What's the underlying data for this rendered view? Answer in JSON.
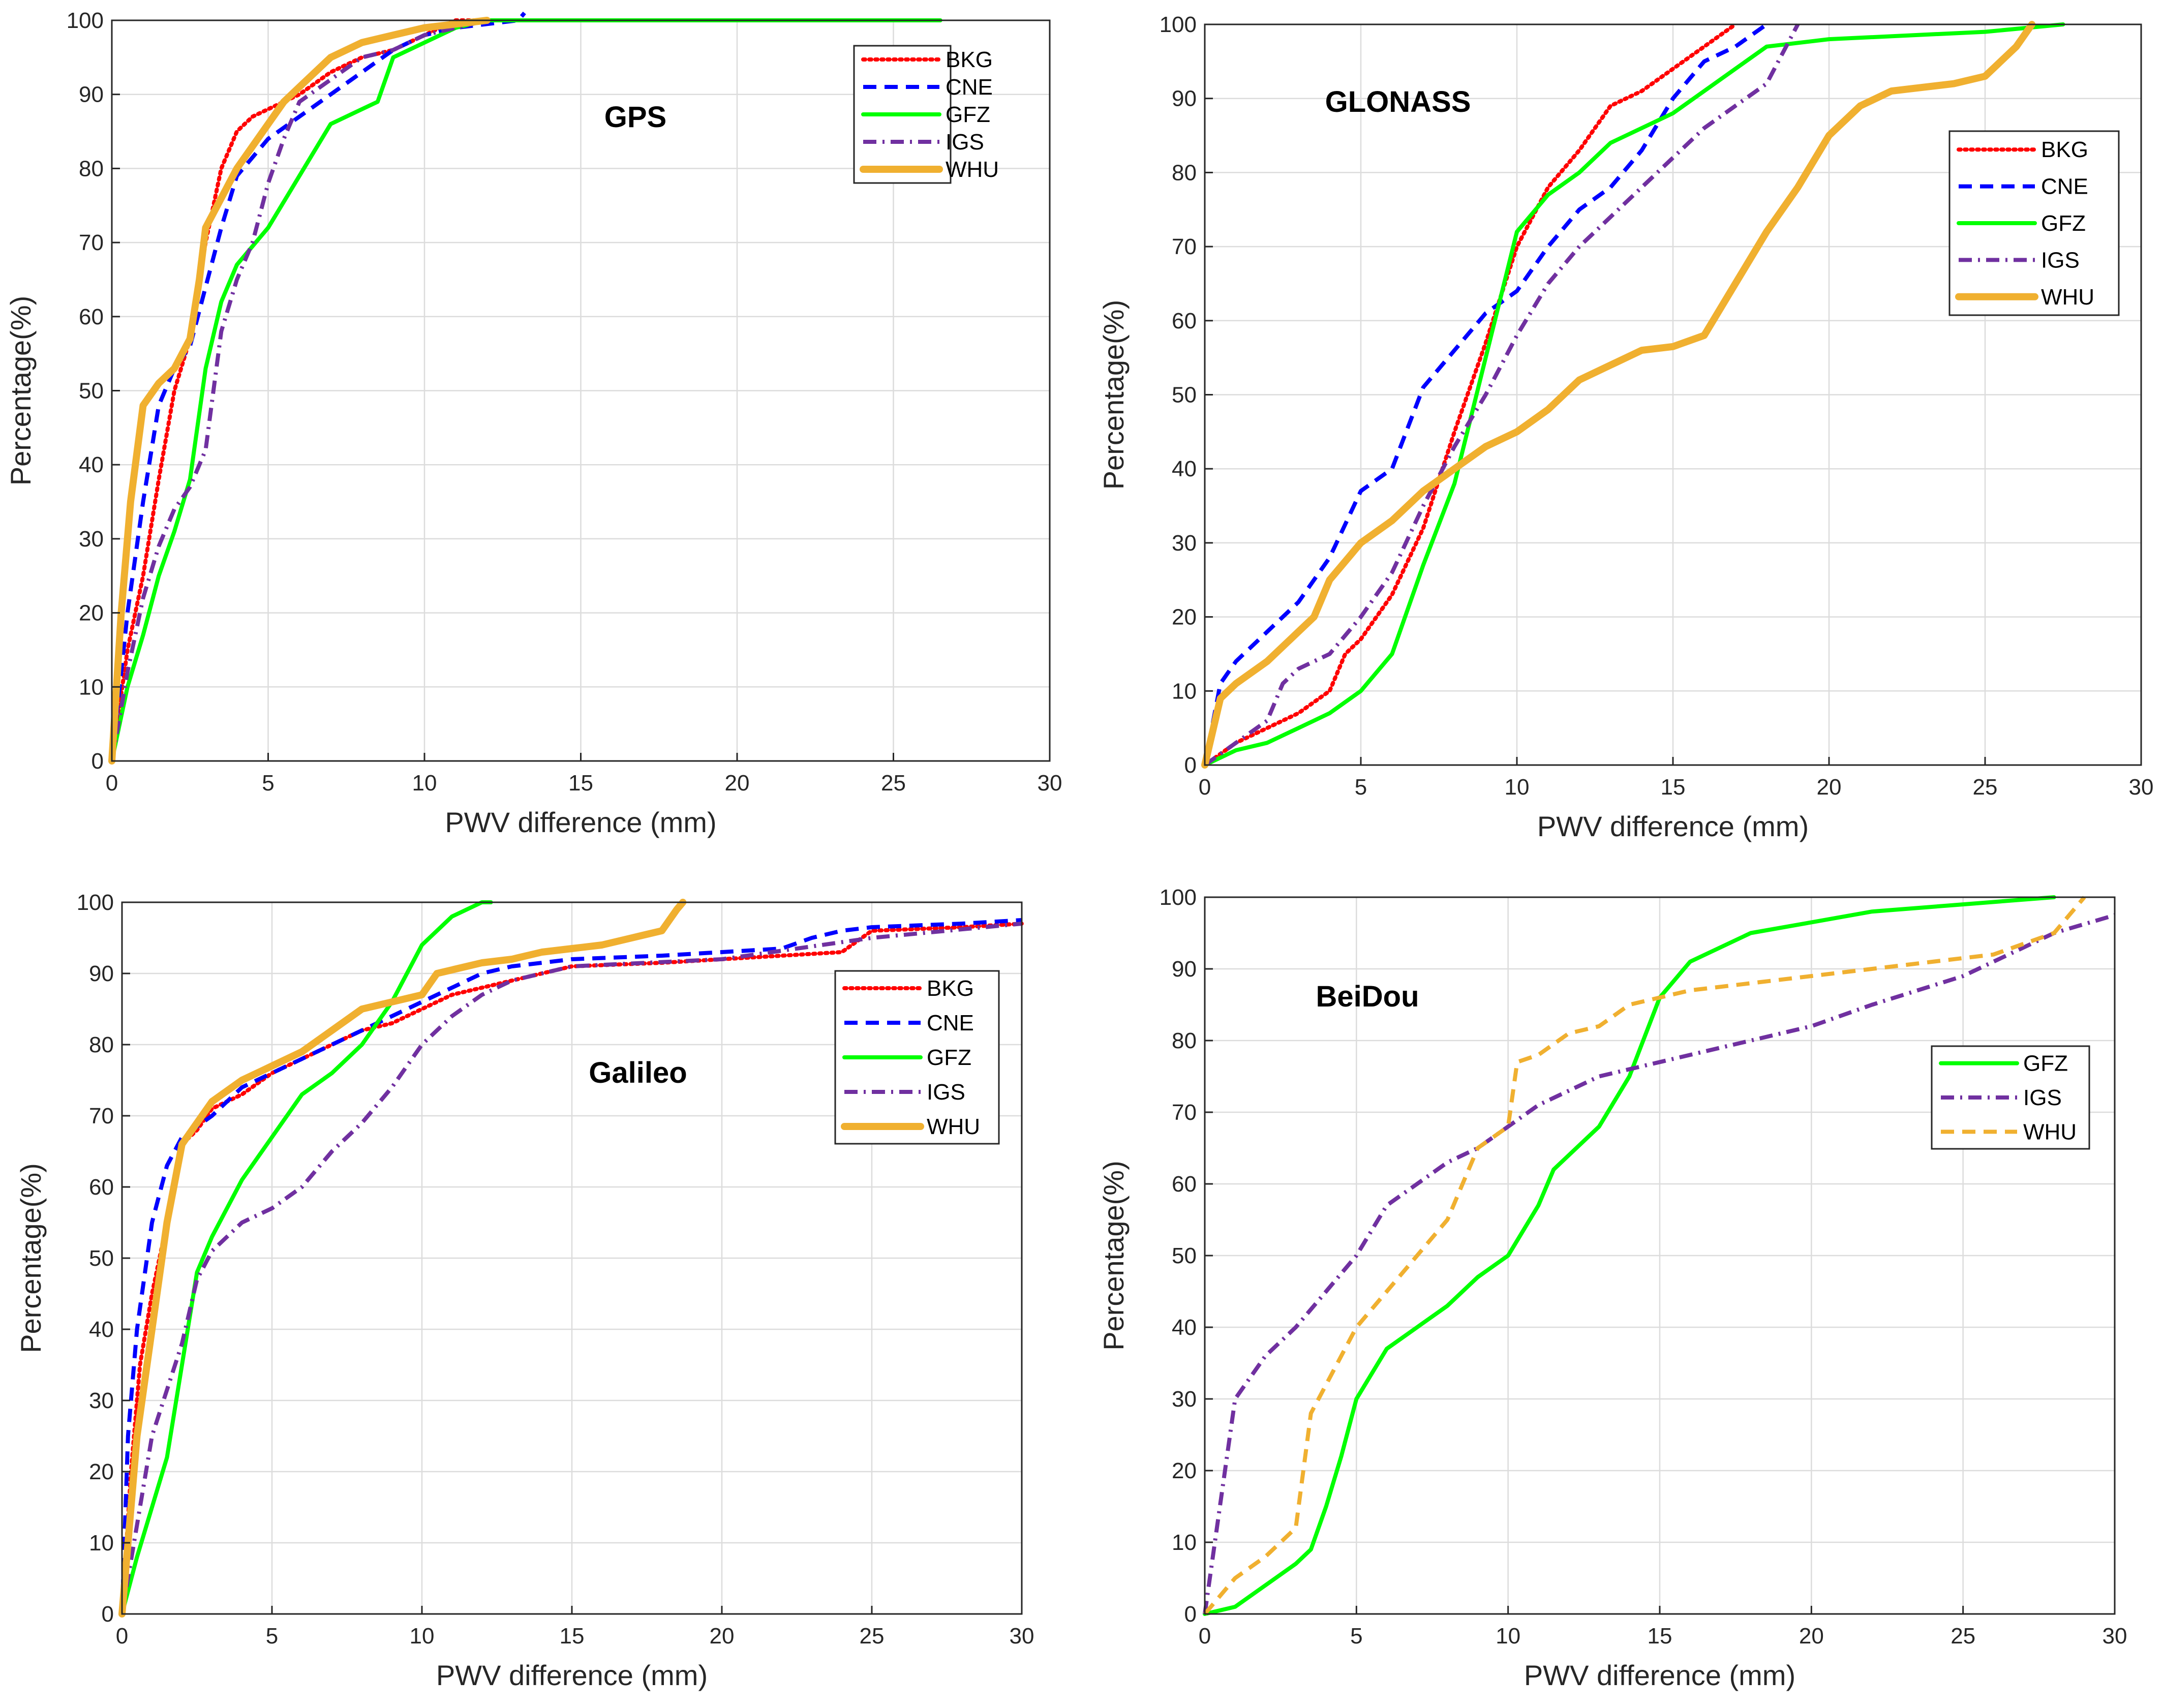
{
  "chart_data": [
    {
      "type": "line",
      "title": "GPS",
      "xlabel": "PWV difference (mm)",
      "ylabel": "Percentage(%)",
      "xlim": [
        0,
        30
      ],
      "ylim": [
        0,
        100
      ],
      "xticks": [
        "0",
        "5",
        "10",
        "15",
        "20",
        "25",
        "30"
      ],
      "yticks": [
        "0",
        "10",
        "20",
        "30",
        "40",
        "50",
        "60",
        "70",
        "80",
        "90",
        "100"
      ],
      "grid": true,
      "legend_position": "top-right",
      "series": [
        {
          "name": "BKG",
          "color": "#ff0000",
          "style": "dotted",
          "x": [
            0,
            0.5,
            1,
            1.5,
            2,
            2.5,
            3,
            3.5,
            4,
            4.5,
            5,
            6,
            7,
            8,
            9,
            10,
            10.5,
            11,
            12
          ],
          "y": [
            0,
            15,
            25,
            38,
            50,
            57,
            70,
            80,
            85,
            87,
            88,
            90,
            93,
            95,
            96,
            98,
            99,
            100,
            100
          ]
        },
        {
          "name": "CNE",
          "color": "#0000ff",
          "style": "dashed",
          "x": [
            0,
            0.5,
            1,
            1.5,
            2,
            2.5,
            3,
            3.5,
            4,
            5,
            6,
            7,
            8,
            9,
            10,
            11,
            12,
            13,
            13.2
          ],
          "y": [
            0,
            20,
            35,
            48,
            53,
            56,
            64,
            72,
            79,
            84,
            87,
            90,
            93,
            96,
            98,
            99,
            99.5,
            100,
            101
          ]
        },
        {
          "name": "GFZ",
          "color": "#00ff00",
          "style": "solid",
          "x": [
            0,
            0.5,
            1,
            1.5,
            2,
            2.5,
            3,
            3.5,
            4,
            5,
            6,
            7,
            8,
            8.5,
            9,
            10,
            11,
            12,
            15,
            20,
            25,
            26.5
          ],
          "y": [
            0,
            10,
            17,
            25,
            31,
            38,
            53,
            62,
            67,
            72,
            79,
            86,
            88,
            89,
            95,
            97,
            99,
            100,
            100,
            100,
            100,
            100
          ]
        },
        {
          "name": "IGS",
          "color": "#7030a0",
          "style": "dashdot",
          "x": [
            0,
            0.5,
            1,
            1.5,
            2,
            2.5,
            3,
            3.5,
            4,
            4.5,
            5,
            5.5,
            6,
            7,
            8,
            9,
            10,
            11,
            12
          ],
          "y": [
            0,
            12,
            22,
            29,
            34,
            37,
            42,
            58,
            65,
            70,
            78,
            84,
            89,
            92,
            95,
            96,
            98,
            99,
            100
          ]
        },
        {
          "name": "WHU",
          "color": "#f0b030",
          "style": "solid-thick",
          "x": [
            0,
            0.3,
            0.6,
            1,
            1.5,
            2,
            2.5,
            2.8,
            3,
            3.5,
            4,
            5,
            5.5,
            6,
            7,
            8,
            9,
            10,
            11,
            12
          ],
          "y": [
            0,
            20,
            35,
            48,
            51,
            53,
            57,
            65,
            72,
            76,
            80,
            86,
            89,
            91,
            95,
            97,
            98,
            99,
            99.5,
            100
          ]
        }
      ]
    },
    {
      "type": "line",
      "title": "GLONASS",
      "xlabel": "PWV difference (mm)",
      "ylabel": "Percentage(%)",
      "xlim": [
        0,
        30
      ],
      "ylim": [
        0,
        100
      ],
      "xticks": [
        "0",
        "5",
        "10",
        "15",
        "20",
        "25",
        "30"
      ],
      "yticks": [
        "0",
        "10",
        "20",
        "30",
        "40",
        "50",
        "60",
        "70",
        "80",
        "90",
        "100"
      ],
      "grid": true,
      "legend_position": "top-right",
      "series": [
        {
          "name": "BKG",
          "color": "#ff0000",
          "style": "dotted",
          "x": [
            0,
            1,
            2,
            3,
            4,
            4.5,
            5,
            6,
            7,
            8,
            9,
            10,
            11,
            12,
            13,
            14,
            15,
            16,
            17
          ],
          "y": [
            0,
            3,
            5,
            7,
            10,
            15,
            17,
            23,
            32,
            45,
            57,
            70,
            78,
            83,
            89,
            91,
            94,
            97,
            100
          ]
        },
        {
          "name": "CNE",
          "color": "#0000ff",
          "style": "dashed",
          "x": [
            0,
            0.5,
            1,
            2,
            3,
            4,
            5,
            6,
            7,
            8,
            9,
            10,
            11,
            12,
            13,
            14,
            15,
            16,
            17,
            18
          ],
          "y": [
            0,
            11,
            14,
            18,
            22,
            28,
            37,
            40,
            51,
            56,
            61,
            64,
            70,
            75,
            78,
            83,
            90,
            95,
            97,
            100
          ]
        },
        {
          "name": "GFZ",
          "color": "#00ff00",
          "style": "solid",
          "x": [
            0,
            1,
            2,
            3,
            4,
            5,
            6,
            7,
            8,
            9,
            10,
            11,
            12,
            13,
            14,
            15,
            16,
            17,
            18,
            20,
            25,
            27.5
          ],
          "y": [
            0,
            2,
            3,
            5,
            7,
            10,
            15,
            27,
            38,
            55,
            72,
            77,
            80,
            84,
            86,
            88,
            91,
            94,
            97,
            98,
            99,
            100
          ]
        },
        {
          "name": "IGS",
          "color": "#7030a0",
          "style": "dashdot",
          "x": [
            0,
            1,
            2,
            2.5,
            3,
            4,
            5,
            6,
            7,
            8,
            9,
            10,
            11,
            12,
            13,
            14,
            15,
            16,
            17,
            18,
            19
          ],
          "y": [
            0,
            3,
            6,
            11,
            13,
            15,
            20,
            26,
            35,
            43,
            50,
            58,
            65,
            70,
            74,
            78,
            82,
            86,
            89,
            92,
            100
          ]
        },
        {
          "name": "WHU",
          "color": "#f0b030",
          "style": "solid-thick",
          "x": [
            0,
            0.5,
            1,
            2,
            3,
            3.5,
            4,
            5,
            6,
            7,
            8,
            9,
            10,
            11,
            12,
            13,
            14,
            15,
            16,
            17,
            18,
            19,
            20,
            21,
            22,
            23,
            24,
            25,
            26,
            26.5
          ],
          "y": [
            0,
            9,
            11,
            14,
            18,
            20,
            25,
            30,
            33,
            37,
            40,
            43,
            45,
            48,
            52,
            54,
            56,
            56.5,
            58,
            65,
            72,
            78,
            85,
            89,
            91,
            91.5,
            92,
            93,
            97,
            100
          ]
        }
      ]
    },
    {
      "type": "line",
      "title": "Galileo",
      "xlabel": "PWV difference (mm)",
      "ylabel": "Percentage(%)",
      "xlim": [
        0,
        30
      ],
      "ylim": [
        0,
        100
      ],
      "xticks": [
        "0",
        "5",
        "10",
        "15",
        "20",
        "25",
        "30"
      ],
      "yticks": [
        "0",
        "10",
        "20",
        "30",
        "40",
        "50",
        "60",
        "70",
        "80",
        "90",
        "100"
      ],
      "grid": true,
      "legend_position": "top-right",
      "series": [
        {
          "name": "BKG",
          "color": "#ff0000",
          "style": "dotted",
          "x": [
            0,
            0.3,
            0.6,
            1,
            1.5,
            2,
            2.5,
            3,
            4,
            5,
            6,
            7,
            8,
            9,
            10,
            11,
            12,
            13,
            15,
            18,
            20,
            22,
            24,
            25,
            28,
            30
          ],
          "y": [
            0,
            20,
            35,
            45,
            55,
            66,
            68,
            71,
            73,
            76,
            78,
            80,
            82,
            83,
            85,
            87,
            88,
            89,
            91,
            91.5,
            92,
            92.5,
            93,
            96,
            96.5,
            97
          ]
        },
        {
          "name": "CNE",
          "color": "#0000ff",
          "style": "dashed",
          "x": [
            0,
            0.2,
            0.5,
            1,
            1.5,
            2,
            3,
            4,
            5,
            6,
            7,
            8,
            9,
            10,
            11,
            12,
            13,
            15,
            18,
            20,
            22,
            23,
            24,
            25,
            28,
            30
          ],
          "y": [
            0,
            25,
            40,
            55,
            63,
            67,
            70,
            74,
            76,
            78,
            80,
            82,
            84,
            86,
            88,
            90,
            91,
            92,
            92.5,
            93,
            93.5,
            95,
            96,
            96.5,
            97,
            97.5
          ]
        },
        {
          "name": "GFZ",
          "color": "#00ff00",
          "style": "solid",
          "x": [
            0,
            0.5,
            1,
            1.5,
            2,
            2.5,
            3,
            4,
            5,
            6,
            7,
            8,
            9,
            9.5,
            10,
            11,
            12,
            12.3
          ],
          "y": [
            0,
            8,
            15,
            22,
            35,
            48,
            53,
            61,
            67,
            73,
            76,
            80,
            86,
            90,
            94,
            98,
            100,
            100
          ]
        },
        {
          "name": "IGS",
          "color": "#7030a0",
          "style": "dashdot",
          "x": [
            0,
            1,
            2,
            2.5,
            3,
            4,
            5,
            6,
            7,
            8,
            9,
            10,
            11,
            12,
            13,
            15,
            20,
            25,
            30
          ],
          "y": [
            0,
            25,
            38,
            47,
            51,
            55,
            57,
            60,
            65,
            69,
            74,
            80,
            84,
            87,
            89,
            91,
            92,
            95,
            97
          ]
        },
        {
          "name": "WHU",
          "color": "#f0b030",
          "style": "solid-thick",
          "x": [
            0,
            0.5,
            1,
            1.5,
            2,
            2.5,
            3,
            4,
            5,
            6,
            7,
            8,
            9,
            10,
            10.5,
            11,
            12,
            13,
            14,
            15,
            16,
            17,
            18,
            18.5,
            18.7
          ],
          "y": [
            0,
            25,
            40,
            55,
            66,
            69,
            72,
            75,
            77,
            79,
            82,
            85,
            86,
            87,
            90,
            90.5,
            91.5,
            92,
            93,
            93.5,
            94,
            95,
            96,
            99,
            100
          ]
        }
      ]
    },
    {
      "type": "line",
      "title": "BeiDou",
      "xlabel": "PWV difference (mm)",
      "ylabel": "Percentage(%)",
      "xlim": [
        0,
        30
      ],
      "ylim": [
        0,
        100
      ],
      "xticks": [
        "0",
        "5",
        "10",
        "15",
        "20",
        "25",
        "30"
      ],
      "yticks": [
        "0",
        "10",
        "20",
        "30",
        "40",
        "50",
        "60",
        "70",
        "80",
        "90",
        "100"
      ],
      "grid": true,
      "legend_position": "top-right",
      "series": [
        {
          "name": "GFZ",
          "color": "#00ff00",
          "style": "solid",
          "x": [
            0,
            1,
            2,
            3,
            3.5,
            4,
            4.5,
            5,
            6,
            7,
            8,
            9,
            10,
            11,
            11.5,
            12,
            13,
            14,
            15,
            16,
            18,
            20,
            22,
            25,
            28
          ],
          "y": [
            0,
            1,
            4,
            7,
            9,
            15,
            22,
            30,
            37,
            40,
            43,
            47,
            50,
            57,
            62,
            64,
            68,
            75,
            86,
            91,
            95,
            96.5,
            98,
            99,
            100
          ]
        },
        {
          "name": "IGS",
          "color": "#7030a0",
          "style": "dashdot",
          "x": [
            0,
            0.5,
            1,
            2,
            3,
            4,
            5,
            6,
            7,
            8,
            9,
            10,
            11,
            12,
            13,
            14,
            15,
            17,
            20,
            22,
            25,
            28,
            30
          ],
          "y": [
            0,
            15,
            30,
            36,
            40,
            45,
            50,
            57,
            60,
            63,
            65,
            68,
            71,
            73,
            75,
            76,
            77,
            79,
            82,
            85,
            89,
            95,
            97.5
          ]
        },
        {
          "name": "WHU",
          "color": "#f0b030",
          "style": "dashed",
          "x": [
            0,
            1,
            2,
            3,
            3.5,
            4,
            5,
            6,
            7,
            8,
            9,
            10,
            10.3,
            11,
            12,
            13,
            14,
            15,
            16,
            18,
            20,
            22,
            24,
            26,
            28,
            29
          ],
          "y": [
            0,
            5,
            8,
            12,
            28,
            32,
            40,
            45,
            50,
            55,
            65,
            68,
            77,
            78,
            81,
            82,
            85,
            86,
            87,
            88,
            89,
            90,
            91,
            92,
            95,
            100
          ]
        }
      ]
    }
  ]
}
